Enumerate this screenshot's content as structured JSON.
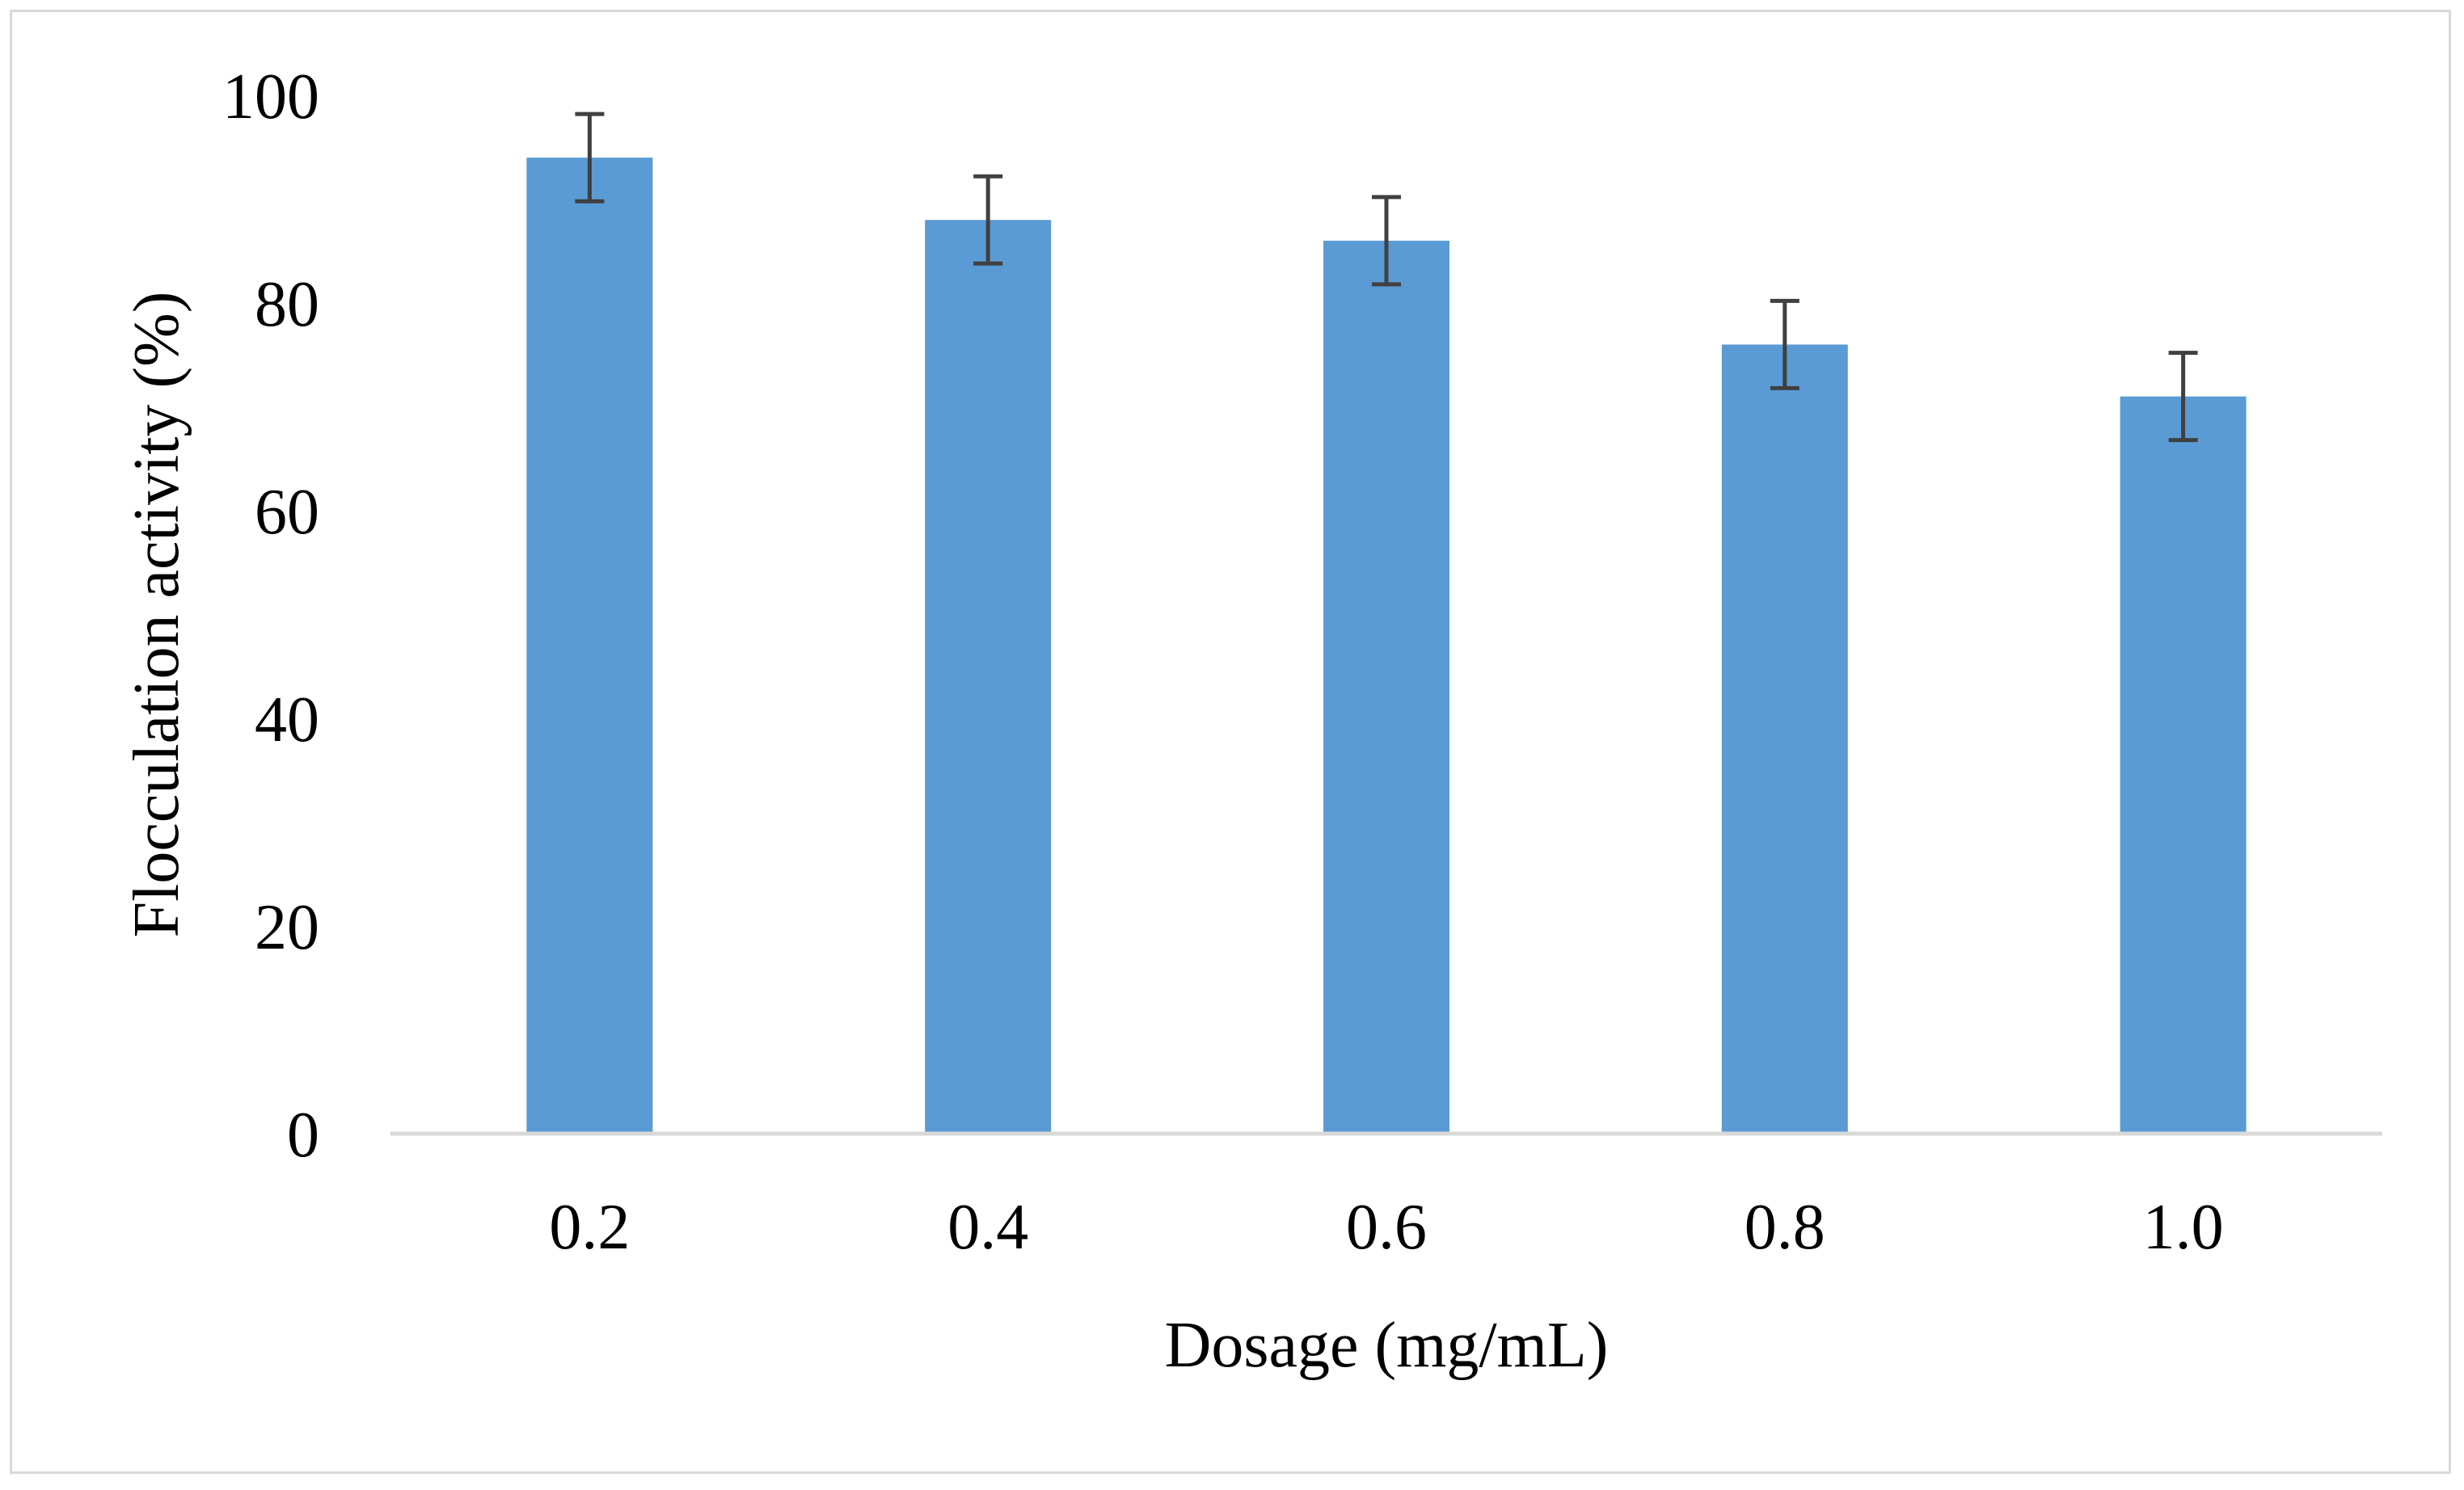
{
  "chart_data": {
    "type": "bar",
    "title": "",
    "categories": [
      "0.2",
      "0.4",
      "0.6",
      "0.8",
      "1.0"
    ],
    "series": [
      {
        "name": "Flocculation activity",
        "values": [
          94,
          88,
          86,
          76,
          71
        ],
        "errors": [
          4.2,
          4.2,
          4.2,
          4.2,
          4.2
        ]
      }
    ],
    "xlabel": "Dosage (mg/mL)",
    "ylabel": "Flocculation activity (%)",
    "ylim": [
      0,
      100
    ],
    "yticks": [
      0,
      20,
      40,
      60,
      80,
      100
    ],
    "grid": false,
    "legend": "none"
  },
  "colors": {
    "bar": "#5B9BD5",
    "error_bar": "#404040",
    "axis": "#d9d9d9",
    "frame": "#d9d9d9"
  }
}
